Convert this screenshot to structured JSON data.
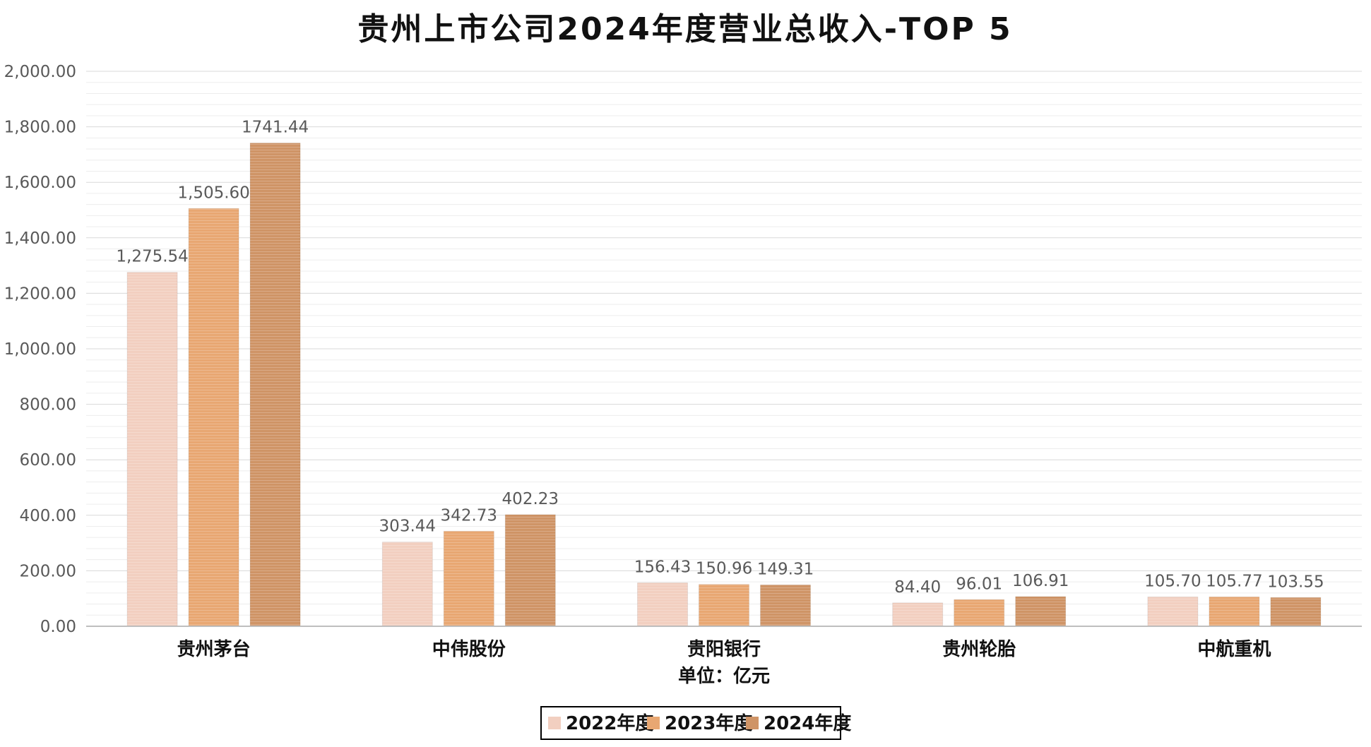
{
  "chart_data": {
    "type": "bar",
    "title": "贵州上市公司2024年度营业总收入-TOP 5",
    "xlabel": "单位：亿元",
    "ylabel": "",
    "ylim": [
      0,
      2000
    ],
    "yticks": [
      0,
      200,
      400,
      600,
      800,
      1000,
      1200,
      1400,
      1600,
      1800,
      2000
    ],
    "ytick_labels": [
      "0.00",
      "200.00",
      "400.00",
      "600.00",
      "800.00",
      "1,000.00",
      "1,200.00",
      "1,400.00",
      "1,600.00",
      "1,800.00",
      "2,000.00"
    ],
    "categories": [
      "贵州茅台",
      "中伟股份",
      "贵阳银行",
      "贵州轮胎",
      "中航重机"
    ],
    "series": [
      {
        "name": "2022年度",
        "color": "#F2CFC0",
        "values": [
          1275.54,
          303.44,
          156.43,
          84.4,
          105.7
        ],
        "labels": [
          "1,275.54",
          "303.44",
          "156.43",
          "84.40",
          "105.70"
        ]
      },
      {
        "name": "2023年度",
        "color": "#E8A772",
        "values": [
          1505.6,
          342.73,
          150.96,
          96.01,
          105.77
        ],
        "labels": [
          "1,505.60",
          "342.73",
          "150.96",
          "96.01",
          "105.77"
        ]
      },
      {
        "name": "2024年度",
        "color": "#CF9466",
        "values": [
          1741.44,
          402.23,
          149.31,
          106.91,
          103.55
        ],
        "labels": [
          "1741.44",
          "402.23",
          "149.31",
          "106.91",
          "103.55"
        ]
      }
    ],
    "grid": true,
    "legend": "bottom-center"
  }
}
